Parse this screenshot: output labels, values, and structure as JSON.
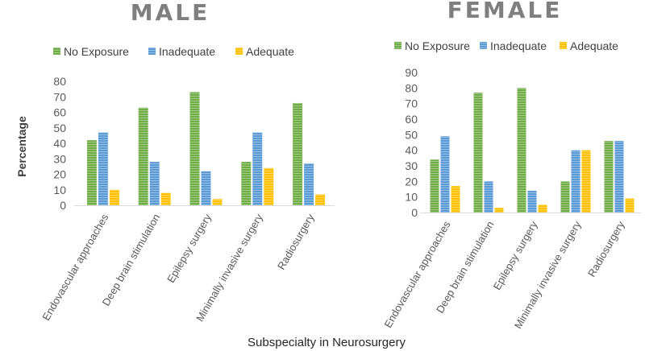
{
  "chart_data": [
    {
      "type": "bar",
      "title": "MALE",
      "ylabel": "Percentage",
      "xlabel": "Subspecialty in Neurosurgery",
      "ylim": [
        0,
        80
      ],
      "yticks": [
        0,
        10,
        20,
        30,
        40,
        50,
        60,
        70,
        80
      ],
      "legend_position": "top",
      "categories": [
        "Endovascular approaches",
        "Deep brain stimulation",
        "Epilepsy surgery",
        "Minimally invasive surgery",
        "Radiosurgery"
      ],
      "series": [
        {
          "name": "No Exposure",
          "color": "#70ad47",
          "values": [
            42,
            63,
            73,
            28,
            66
          ]
        },
        {
          "name": "Inadequate",
          "color": "#5b9bd5",
          "values": [
            47,
            28,
            22,
            47,
            27
          ]
        },
        {
          "name": "Adequate",
          "color": "#ffc000",
          "values": [
            10,
            8,
            4,
            24,
            7
          ]
        }
      ]
    },
    {
      "type": "bar",
      "title": "FEMALE",
      "ylabel": "",
      "xlabel": "",
      "ylim": [
        0,
        90
      ],
      "yticks": [
        0,
        10,
        20,
        30,
        40,
        50,
        60,
        70,
        80,
        90
      ],
      "legend_position": "top",
      "categories": [
        "Endovascular approaches",
        "Deep brain stimulation",
        "Epilepsy surgery",
        "Minimally invasive surgery",
        "Radiosurgery"
      ],
      "series": [
        {
          "name": "No Exposure",
          "color": "#70ad47",
          "values": [
            34,
            77,
            80,
            20,
            46
          ]
        },
        {
          "name": "Inadequate",
          "color": "#5b9bd5",
          "values": [
            49,
            20,
            14,
            40,
            46
          ]
        },
        {
          "name": "Adequate",
          "color": "#ffc000",
          "values": [
            17,
            3,
            5,
            40,
            9
          ]
        }
      ]
    }
  ]
}
